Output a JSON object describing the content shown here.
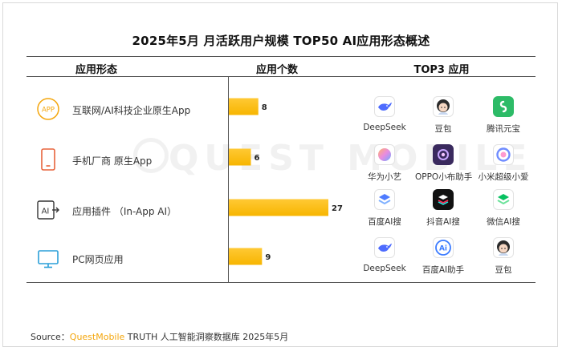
{
  "title": "2025年5月 月活跃用户规模 TOP50 AI应用形态概述",
  "headers": {
    "form": "应用形态",
    "count": "应用个数",
    "top3": "TOP3 应用"
  },
  "watermark": "QUEST MOBILE",
  "colors": {
    "bar": "#f7b500",
    "accent": "#f4a60c",
    "axis": "#555555"
  },
  "rows": [
    {
      "label": "互联网/AI科技企业原生App",
      "icon": "app-badge-icon",
      "apps": [
        {
          "name": "DeepSeek",
          "icon": "deepseek-whale-icon"
        },
        {
          "name": "豆包",
          "icon": "doubao-avatar-icon"
        },
        {
          "name": "腾讯元宝",
          "icon": "yuanbao-icon"
        }
      ]
    },
    {
      "label": "手机厂商 原生App",
      "icon": "phone-icon",
      "apps": [
        {
          "name": "华为小艺",
          "icon": "xiaoyi-orb-icon"
        },
        {
          "name": "OPPO小布助手",
          "icon": "xiaobu-icon"
        },
        {
          "name": "小米超级小爱",
          "icon": "xiaoai-icon"
        }
      ]
    },
    {
      "label": "应用插件 （In-App AI）",
      "icon": "ai-plugin-icon",
      "apps": [
        {
          "name": "百度AI搜",
          "icon": "baidu-ai-search-icon"
        },
        {
          "name": "抖音AI搜",
          "icon": "douyin-ai-search-icon"
        },
        {
          "name": "微信AI搜",
          "icon": "wechat-ai-search-icon"
        }
      ]
    },
    {
      "label": "PC网页应用",
      "icon": "monitor-icon",
      "apps": [
        {
          "name": "DeepSeek",
          "icon": "deepseek-whale-icon"
        },
        {
          "name": "百度AI助手",
          "icon": "baidu-ai-assistant-icon"
        },
        {
          "name": "豆包",
          "icon": "doubao-avatar-icon"
        }
      ]
    }
  ],
  "chart_data": {
    "type": "bar",
    "orientation": "horizontal",
    "categories": [
      "互联网/AI科技企业原生App",
      "手机厂商 原生App",
      "应用插件 （In-App AI）",
      "PC网页应用"
    ],
    "values": [
      8,
      6,
      27,
      9
    ],
    "title": "2025年5月 月活跃用户规模 TOP50 AI应用形态概述",
    "xlabel": "应用个数",
    "ylabel": "应用形态",
    "xlim": [
      0,
      27
    ],
    "grid": false,
    "data_labels": [
      "8",
      "6",
      "27",
      "9"
    ]
  },
  "source": {
    "prefix": "Source：",
    "brand": "QuestMobile",
    "rest": " TRUTH 人工智能洞察数据库 2025年5月"
  }
}
